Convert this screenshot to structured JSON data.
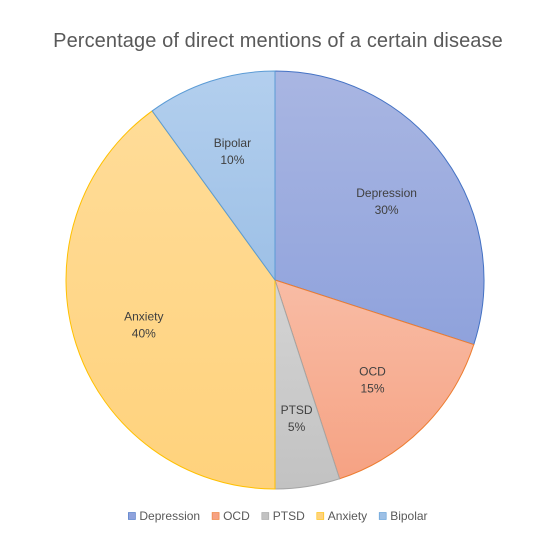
{
  "chart_data": {
    "type": "pie",
    "title": "Percentage of direct mentions of a certain disease",
    "categories": [
      "Depression",
      "OCD",
      "PTSD",
      "Anxiety",
      "Bipolar"
    ],
    "values": [
      30,
      15,
      5,
      40,
      10
    ],
    "value_labels": [
      "30%",
      "15%",
      "5%",
      "40%",
      "10%"
    ],
    "start_angle_deg": 0,
    "direction": "clockwise",
    "legend_position": "bottom",
    "colors": [
      "#8FA2DC",
      "#F6A283",
      "#C2C2C2",
      "#FFD27C",
      "#9DC0E6"
    ],
    "gradient_light": [
      "#A9B6E2",
      "#F8BCA5",
      "#D4D4D4",
      "#FFDC98",
      "#B3CFEE"
    ],
    "border_colors": [
      "#4472C4",
      "#ED7D31",
      "#A5A5A5",
      "#FFC000",
      "#5B9BD5"
    ]
  }
}
